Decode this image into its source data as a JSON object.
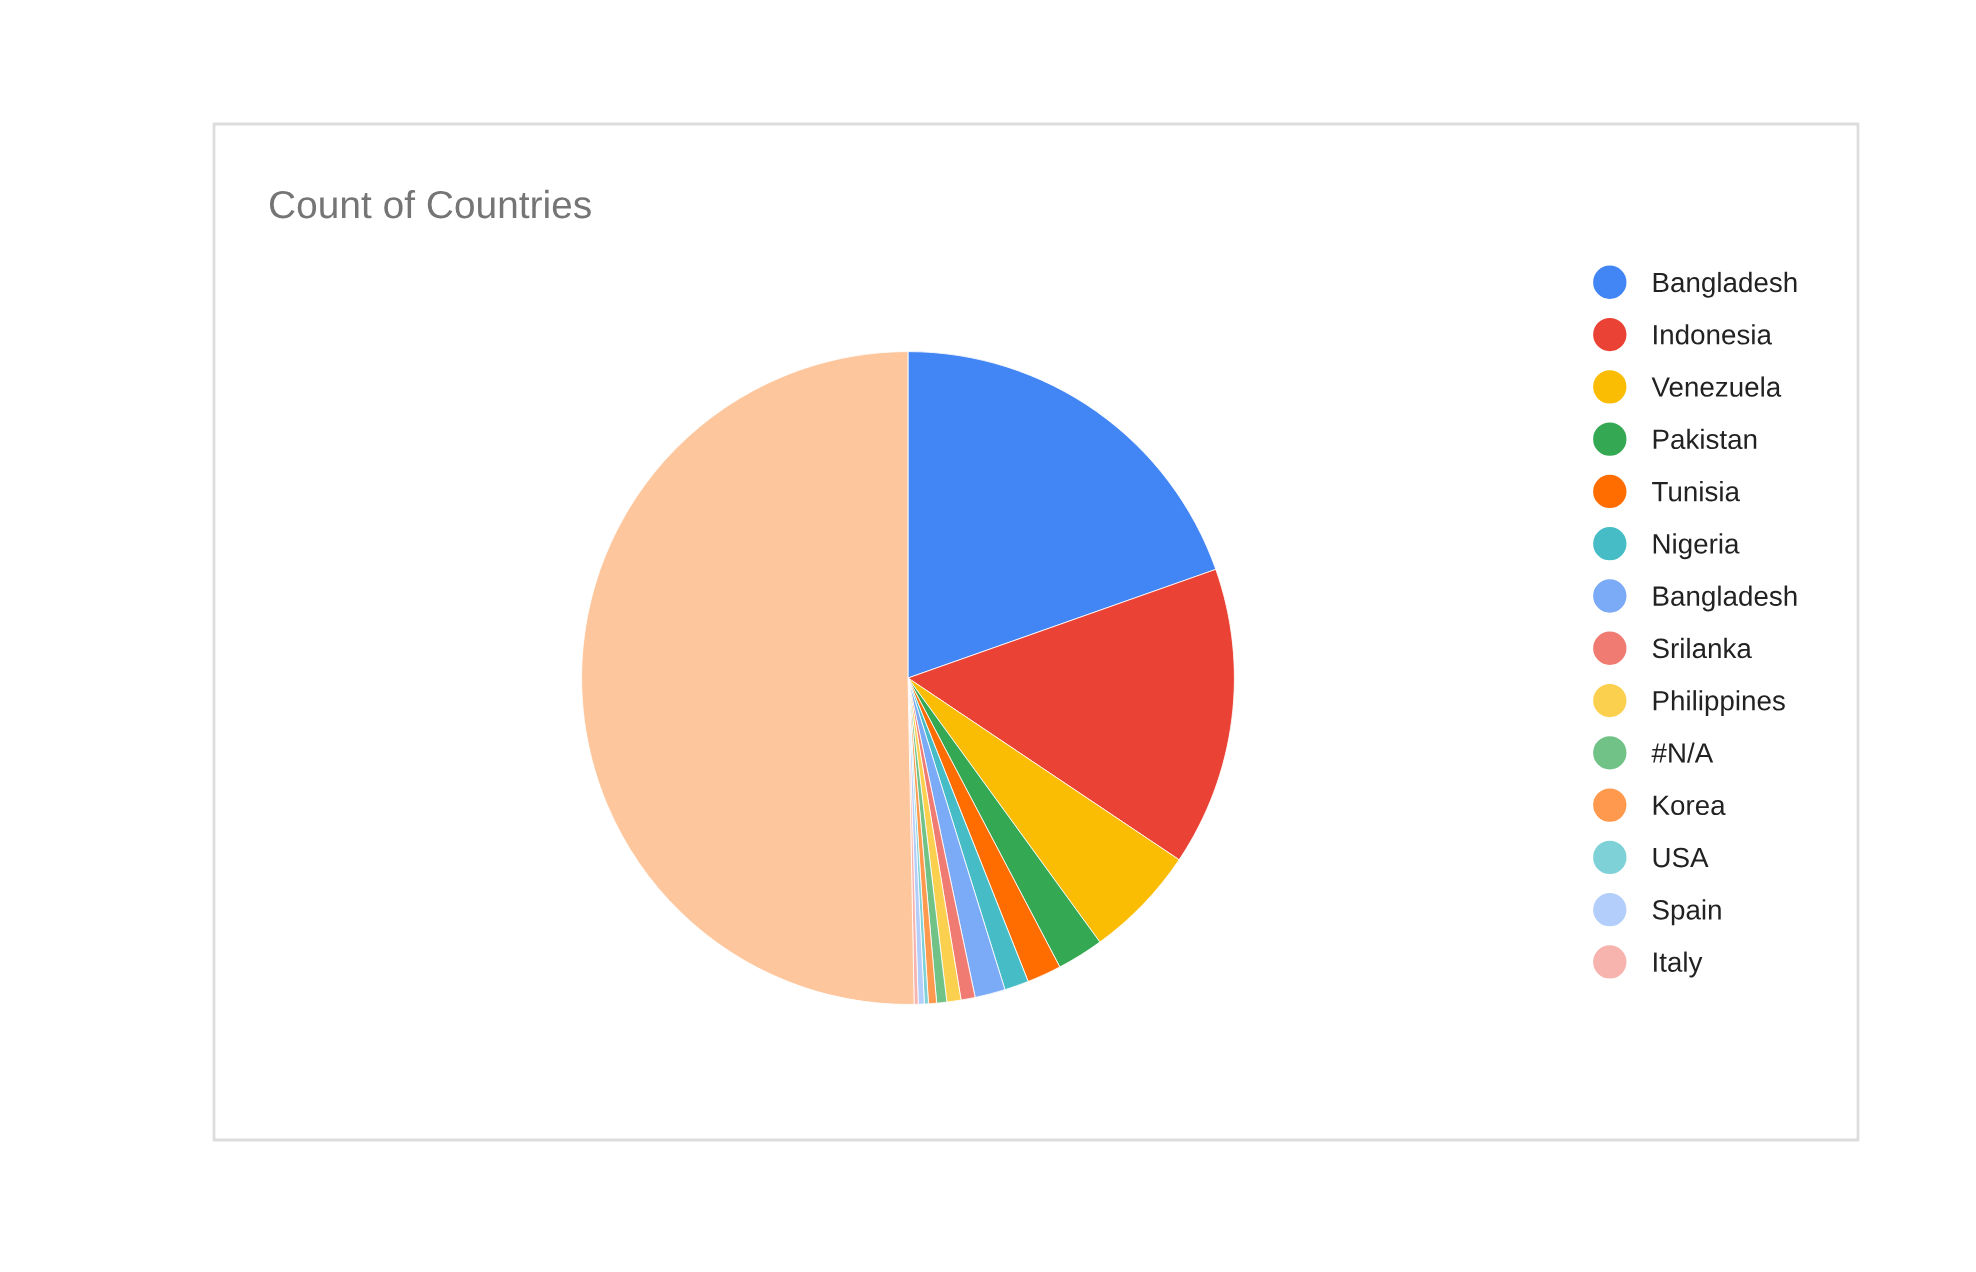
{
  "chart_data": {
    "type": "pie",
    "title": "Count of Countries",
    "categories": [
      "Bangladesh",
      "Indonesia",
      "Venezuela",
      "Pakistan",
      "Tunisia",
      "Nigeria",
      "Bangladesh",
      "Srilanka",
      "Philippines",
      "#N/A",
      "Korea",
      "USA",
      "Spain",
      "Italy",
      null
    ],
    "values": [
      19.6,
      14.8,
      5.6,
      2.3,
      1.7,
      1.2,
      1.5,
      0.7,
      0.7,
      0.5,
      0.4,
      0.2,
      0.3,
      0.2,
      50.3
    ],
    "colors": [
      "#4285f4",
      "#ea4335",
      "#fbbc04",
      "#34a853",
      "#ff6d01",
      "#46bdc6",
      "#7baaf7",
      "#f07b72",
      "#fcd04f",
      "#71c287",
      "#ff994d",
      "#7ed1d7",
      "#b3cefb",
      "#f7b4ae",
      "#fdc69c"
    ],
    "legend": "right"
  }
}
